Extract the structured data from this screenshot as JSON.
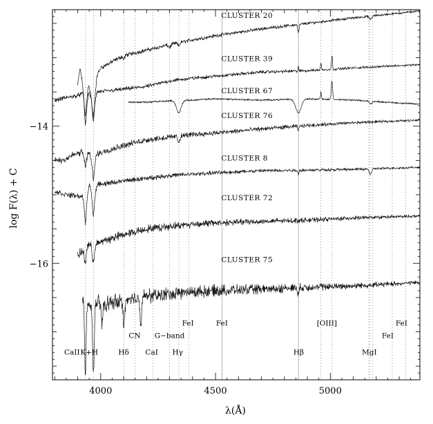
{
  "chart_data": {
    "type": "line",
    "title": "",
    "xlabel": "λ(Å)",
    "ylabel": "log F(λ) + C",
    "xlim": [
      3790,
      5390
    ],
    "ylim": [
      -17.7,
      -12.3
    ],
    "x_ticks": [
      {
        "value": 4000,
        "label": "4000"
      },
      {
        "value": 4500,
        "label": "4500"
      },
      {
        "value": 5000,
        "label": "5000"
      }
    ],
    "y_ticks": [
      {
        "value": -14,
        "label": "−14"
      },
      {
        "value": -16,
        "label": "−16"
      }
    ],
    "spectral_lines": [
      {
        "name": "Ca II",
        "wavelength": 3933.7,
        "style": "dotted"
      },
      {
        "name": "Ca II",
        "wavelength": 3968.5,
        "style": "dotted"
      },
      {
        "name": "Hδ",
        "wavelength": 4101.7,
        "style": "dotted"
      },
      {
        "name": "CN",
        "wavelength": 4150,
        "style": "dotted"
      },
      {
        "name": "Ca I",
        "wavelength": 4226.7,
        "style": "dotted"
      },
      {
        "name": "G-band",
        "wavelength": 4300,
        "style": "dotted"
      },
      {
        "name": "Hγ",
        "wavelength": 4340.5,
        "style": "dotted"
      },
      {
        "name": "Fe I",
        "wavelength": 4383.5,
        "style": "dotted"
      },
      {
        "name": "Fe I",
        "wavelength": 4528.6,
        "style": "dense"
      },
      {
        "name": "Hβ",
        "wavelength": 4861.3,
        "style": "dense"
      },
      {
        "name": "[OIII]",
        "wavelength": 4958.9,
        "style": "dotted"
      },
      {
        "name": "[OIII]",
        "wavelength": 5006.8,
        "style": "dotted"
      },
      {
        "name": "Mg I",
        "wavelength": 5167.3,
        "style": "dotted"
      },
      {
        "name": "Mg I",
        "wavelength": 5172.7,
        "style": "dotted"
      },
      {
        "name": "Mg I",
        "wavelength": 5183.6,
        "style": "dotted"
      },
      {
        "name": "Fe I",
        "wavelength": 5270,
        "style": "dotted"
      },
      {
        "name": "Fe I",
        "wavelength": 5328,
        "style": "dotted"
      }
    ],
    "line_labels": [
      {
        "text": "CaII",
        "x": 3875,
        "y": -17.33
      },
      {
        "text": "K+H",
        "x": 3950,
        "y": -17.33
      },
      {
        "text": "Hδ",
        "x": 4100,
        "y": -17.33
      },
      {
        "text": "CaI",
        "x": 4222,
        "y": -17.33
      },
      {
        "text": "Hγ",
        "x": 4335,
        "y": -17.33
      },
      {
        "text": "Hβ",
        "x": 4862,
        "y": -17.33
      },
      {
        "text": "MgI",
        "x": 5170,
        "y": -17.33
      },
      {
        "text": "CN",
        "x": 4148,
        "y": -17.09
      },
      {
        "text": "G−band",
        "x": 4300,
        "y": -17.09
      },
      {
        "text": "FeI",
        "x": 5250,
        "y": -17.09
      },
      {
        "text": "FeI",
        "x": 4380,
        "y": -16.91
      },
      {
        "text": "FeI",
        "x": 4528,
        "y": -16.91
      },
      {
        "text": "[OIII]",
        "x": 4985,
        "y": -16.91
      },
      {
        "text": "FeI",
        "x": 5310,
        "y": -16.91
      }
    ],
    "series": [
      {
        "name": "CLUSTER 20",
        "x_start": 3900,
        "x_end": 5390,
        "label_x": 4525,
        "label_y": -12.42,
        "knots": [
          [
            3900,
            -13.4
          ],
          [
            3910,
            -13.15
          ],
          [
            3933,
            -13.6
          ],
          [
            3945,
            -13.38
          ],
          [
            3968,
            -13.62
          ],
          [
            3985,
            -13.25
          ],
          [
            4000,
            -13.15
          ],
          [
            4100,
            -12.97
          ],
          [
            4200,
            -12.89
          ],
          [
            4300,
            -12.81
          ],
          [
            4400,
            -12.74
          ],
          [
            4500,
            -12.68
          ],
          [
            4700,
            -12.58
          ],
          [
            4900,
            -12.5
          ],
          [
            5100,
            -12.42
          ],
          [
            5390,
            -12.32
          ]
        ],
        "dips": [
          [
            3933,
            6,
            0.25
          ],
          [
            3968,
            6,
            0.25
          ],
          [
            4101,
            4,
            0.05
          ],
          [
            4300,
            5,
            0.04
          ],
          [
            4340,
            4,
            0.05
          ],
          [
            4861,
            3,
            0.12
          ],
          [
            5175,
            5,
            0.05
          ]
        ],
        "noise_start": 0.025,
        "noise_end": 0.012,
        "peaks": []
      },
      {
        "name": "CLUSTER 39",
        "x_start": 3800,
        "x_end": 5390,
        "label_x": 4525,
        "label_y": -13.05,
        "knots": [
          [
            3800,
            -13.62
          ],
          [
            3900,
            -13.55
          ],
          [
            3925,
            -13.52
          ],
          [
            3935,
            -13.7
          ],
          [
            3950,
            -13.5
          ],
          [
            3968,
            -13.7
          ],
          [
            3985,
            -13.5
          ],
          [
            4100,
            -13.46
          ],
          [
            4200,
            -13.42
          ],
          [
            4300,
            -13.34
          ],
          [
            4400,
            -13.3
          ],
          [
            4500,
            -13.27
          ],
          [
            4700,
            -13.21
          ],
          [
            4900,
            -13.19
          ],
          [
            5100,
            -13.15
          ],
          [
            5390,
            -13.1
          ]
        ],
        "dips": [
          [
            3933,
            4,
            0.3
          ],
          [
            3968,
            4,
            0.25
          ],
          [
            4861,
            3,
            0.05
          ]
        ],
        "noise_start": 0.025,
        "noise_end": 0.012,
        "peaks": [
          [
            4861,
            2,
            0.12
          ],
          [
            4959,
            2,
            0.09
          ],
          [
            5007,
            2,
            0.2
          ]
        ]
      },
      {
        "name": "CLUSTER 67",
        "x_start": 4120,
        "x_end": 5390,
        "label_x": 4525,
        "label_y": -13.52,
        "knots": [
          [
            4120,
            -13.65
          ],
          [
            4200,
            -13.65
          ],
          [
            4300,
            -13.63
          ],
          [
            4400,
            -13.62
          ],
          [
            4500,
            -13.6
          ],
          [
            4700,
            -13.62
          ],
          [
            4900,
            -13.6
          ],
          [
            5000,
            -13.61
          ],
          [
            5100,
            -13.62
          ],
          [
            5390,
            -13.68
          ]
        ],
        "dips": [
          [
            4340,
            10,
            0.18
          ],
          [
            4861,
            12,
            0.2
          ],
          [
            5175,
            5,
            0.04
          ]
        ],
        "noise_start": 0.01,
        "noise_end": 0.01,
        "peaks": [
          [
            4959,
            2,
            0.1
          ],
          [
            5007,
            3,
            0.27
          ]
        ]
      },
      {
        "name": "CLUSTER 76",
        "x_start": 3800,
        "x_end": 5390,
        "label_x": 4525,
        "label_y": -13.88,
        "knots": [
          [
            3800,
            -14.48
          ],
          [
            3830,
            -14.5
          ],
          [
            3880,
            -14.42
          ],
          [
            3930,
            -14.37
          ],
          [
            3950,
            -14.4
          ],
          [
            3968,
            -14.55
          ],
          [
            3985,
            -14.4
          ],
          [
            4100,
            -14.28
          ],
          [
            4200,
            -14.2
          ],
          [
            4300,
            -14.16
          ],
          [
            4400,
            -14.12
          ],
          [
            4500,
            -14.1
          ],
          [
            4700,
            -14.04
          ],
          [
            4900,
            -13.99
          ],
          [
            5100,
            -13.95
          ],
          [
            5390,
            -13.91
          ]
        ],
        "dips": [
          [
            3933,
            5,
            0.2
          ],
          [
            3968,
            5,
            0.2
          ],
          [
            4340,
            5,
            0.08
          ],
          [
            4861,
            3,
            0.06
          ]
        ],
        "noise_start": 0.04,
        "noise_end": 0.012,
        "peaks": []
      },
      {
        "name": "CLUSTER 8",
        "x_start": 3800,
        "x_end": 5390,
        "label_x": 4525,
        "label_y": -14.5,
        "knots": [
          [
            3800,
            -14.95
          ],
          [
            3850,
            -15.0
          ],
          [
            3900,
            -15.02
          ],
          [
            3920,
            -15.03
          ],
          [
            3935,
            -15.12
          ],
          [
            3950,
            -14.85
          ],
          [
            3968,
            -14.95
          ],
          [
            3990,
            -14.85
          ],
          [
            4100,
            -14.8
          ],
          [
            4200,
            -14.76
          ],
          [
            4300,
            -14.72
          ],
          [
            4400,
            -14.7
          ],
          [
            4500,
            -14.68
          ],
          [
            4700,
            -14.65
          ],
          [
            4900,
            -14.64
          ],
          [
            5100,
            -14.63
          ],
          [
            5390,
            -14.6
          ]
        ],
        "dips": [
          [
            3933,
            4,
            0.3
          ],
          [
            3968,
            5,
            0.35
          ],
          [
            4861,
            3,
            0.05
          ],
          [
            5175,
            5,
            0.08
          ]
        ],
        "noise_start": 0.03,
        "noise_end": 0.012,
        "peaks": []
      },
      {
        "name": "CLUSTER 72",
        "x_start": 3900,
        "x_end": 5390,
        "label_x": 4525,
        "label_y": -15.08,
        "knots": [
          [
            3900,
            -15.9
          ],
          [
            3925,
            -15.8
          ],
          [
            3945,
            -15.72
          ],
          [
            3968,
            -15.78
          ],
          [
            3990,
            -15.7
          ],
          [
            4100,
            -15.58
          ],
          [
            4200,
            -15.5
          ],
          [
            4300,
            -15.46
          ],
          [
            4400,
            -15.43
          ],
          [
            4500,
            -15.41
          ],
          [
            4700,
            -15.39
          ],
          [
            4900,
            -15.37
          ],
          [
            5100,
            -15.34
          ],
          [
            5390,
            -15.31
          ]
        ],
        "dips": [
          [
            3933,
            4,
            0.25
          ],
          [
            3968,
            4,
            0.2
          ]
        ],
        "noise_start": 0.05,
        "noise_end": 0.015,
        "peaks": []
      },
      {
        "name": "CLUSTER 75",
        "x_start": 3920,
        "x_end": 5390,
        "label_x": 4525,
        "label_y": -15.98,
        "knots": [
          [
            3920,
            -16.55
          ],
          [
            3940,
            -16.65
          ],
          [
            3960,
            -16.55
          ],
          [
            4000,
            -16.6
          ],
          [
            4100,
            -16.55
          ],
          [
            4200,
            -16.48
          ],
          [
            4300,
            -16.45
          ],
          [
            4400,
            -16.42
          ],
          [
            4500,
            -16.4
          ],
          [
            4700,
            -16.38
          ],
          [
            4900,
            -16.35
          ],
          [
            5100,
            -16.33
          ],
          [
            5390,
            -16.28
          ]
        ],
        "dips": [
          [
            3933,
            3,
            1.05
          ],
          [
            3968,
            4,
            1.0
          ],
          [
            4005,
            3,
            0.3
          ],
          [
            4101,
            3,
            0.4
          ],
          [
            4175,
            3,
            0.4
          ],
          [
            4861,
            3,
            0.1
          ]
        ],
        "noise_start": 0.09,
        "noise_end": 0.02,
        "peaks": []
      }
    ]
  }
}
